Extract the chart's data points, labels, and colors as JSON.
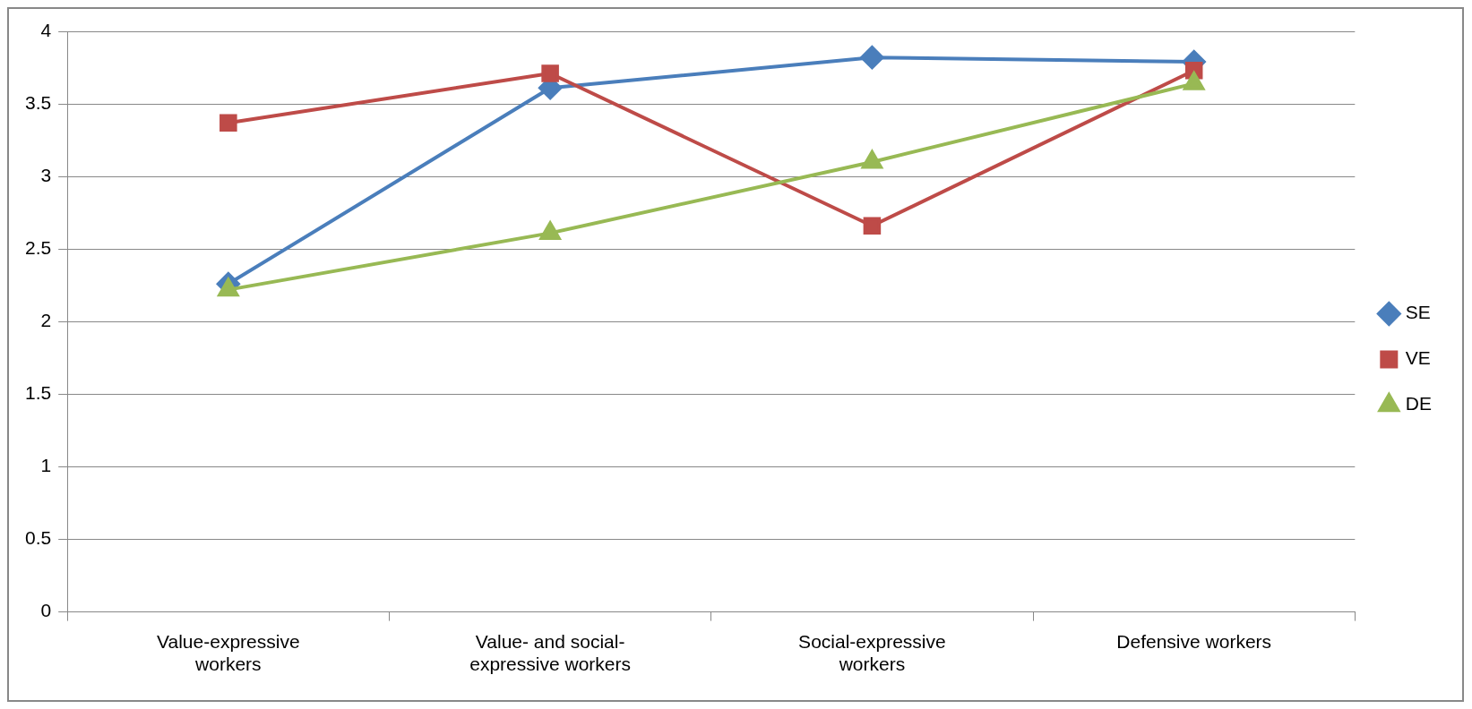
{
  "chart_data": {
    "type": "line",
    "categories": [
      "Value-expressive workers",
      "Value- and social-expressive workers",
      "Social-expressive workers",
      "Defensive workers"
    ],
    "series": [
      {
        "name": "SE",
        "color": "#4a7ebb",
        "marker": "diamond",
        "values": [
          2.26,
          3.61,
          3.82,
          3.79
        ]
      },
      {
        "name": "VE",
        "color": "#be4b48",
        "marker": "square",
        "values": [
          3.37,
          3.71,
          2.66,
          3.73
        ]
      },
      {
        "name": "DE",
        "color": "#98b954",
        "marker": "triangle",
        "values": [
          2.22,
          2.61,
          3.1,
          3.64
        ]
      }
    ],
    "ylim": [
      0,
      4
    ],
    "yticks": [
      0,
      0.5,
      1,
      1.5,
      2,
      2.5,
      3,
      3.5,
      4
    ],
    "grid": "y",
    "legend": "right",
    "line_style": "solid"
  }
}
